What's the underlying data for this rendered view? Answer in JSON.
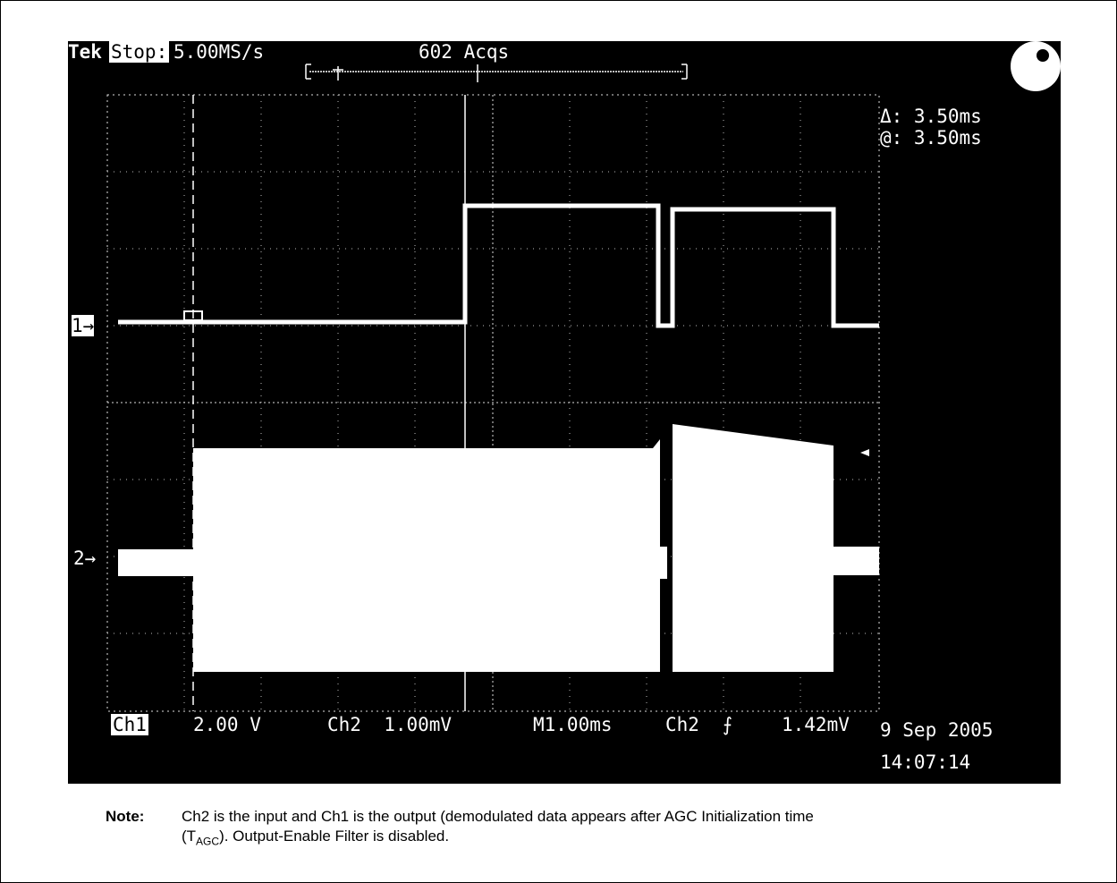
{
  "scope": {
    "brand": "Tek",
    "run_state": "Stop:",
    "sample_rate": "5.00MS/s",
    "acquisitions": "602 Acqs",
    "cursor_delta": "Δ: 3.50ms",
    "cursor_at": "@: 3.50ms",
    "ch1_marker": "1→",
    "ch2_marker": "2→",
    "ch1_label": "Ch1",
    "ch1_scale": "2.00 V",
    "ch2_scale": "Ch2  1.00mV",
    "timebase": "M1.00ms",
    "trigger_source": "Ch2 ",
    "trigger_slope": "⨍",
    "trigger_level": "1.42mV",
    "date": "9 Sep 2005",
    "time": "14:07:14"
  },
  "note": {
    "label": "Note:",
    "line1": "Ch2 is the input and Ch1 is the output (demodulated data appears after AGC Initialization time",
    "line2_open": "(T",
    "line2_sub": "AGC",
    "line2_close": "). Output-Enable Filter is disabled."
  }
}
